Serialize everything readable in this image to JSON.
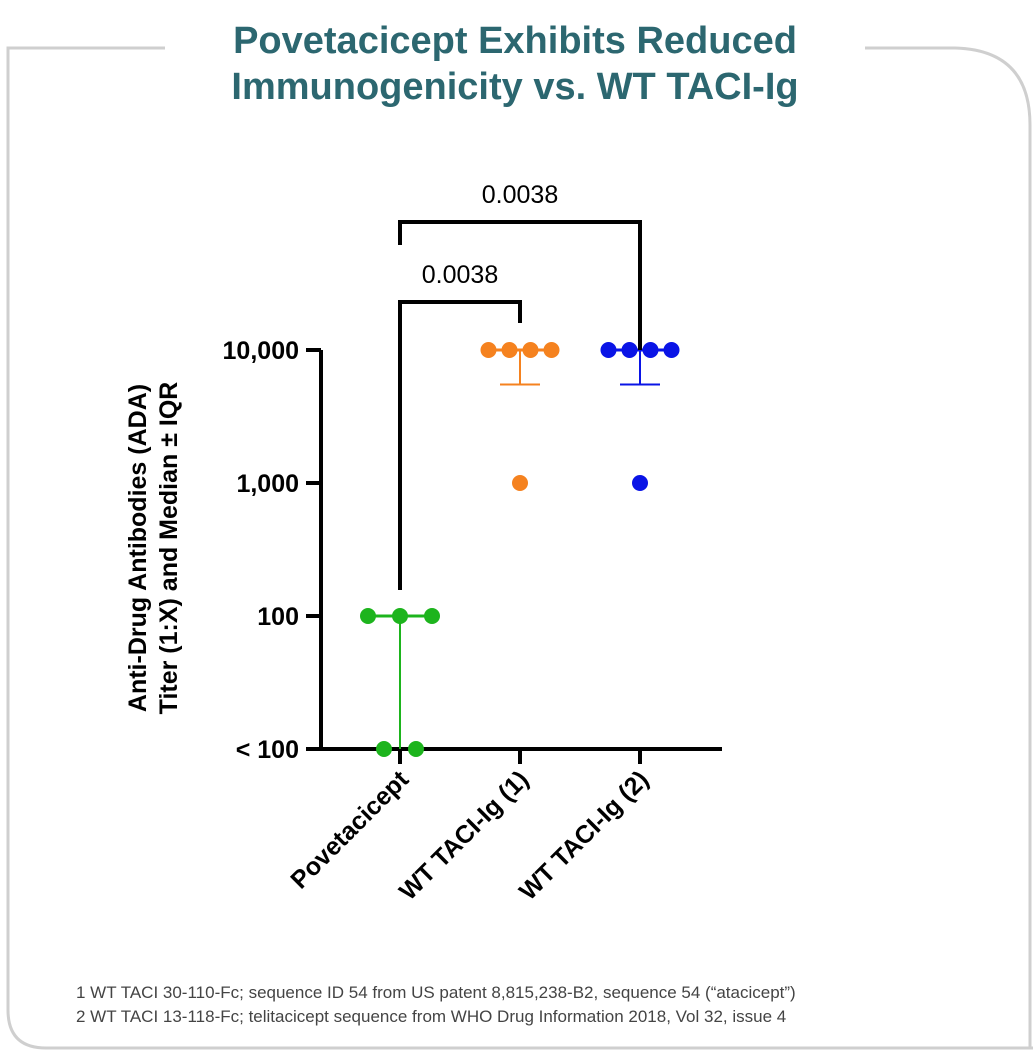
{
  "title": "Povetacicept Exhibits Reduced Immunogenicity vs. WT TACI-Ig",
  "title_lines": [
    "Povetacicept Exhibits Reduced",
    "Immunogenicity vs. WT TACI-Ig"
  ],
  "footnotes": [
    "1 WT TACI 30-110-Fc; sequence ID 54 from US patent 8,815,238-B2, sequence 54 (“atacicept”)",
    "2 WT TACI 13-118-Fc; telitacicept sequence from WHO Drug Information 2018, Vol 32, issue 4"
  ],
  "colors": {
    "title": "#2c6770",
    "frame": "#cfcfcf"
  },
  "chart_data": {
    "type": "scatter",
    "ylabel_lines": [
      "Anti-Drug Antibodies (ADA)",
      "Titer (1:X) and Median ± IQR"
    ],
    "yscale": "log",
    "yticks": [
      {
        "value": "<100",
        "label": "< 100"
      },
      {
        "value": 100,
        "label": "100"
      },
      {
        "value": 1000,
        "label": "1,000"
      },
      {
        "value": 10000,
        "label": "10,000"
      }
    ],
    "categories": [
      "Povetacicept",
      "WT TACI-Ig (1)",
      "WT TACI-Ig (2)"
    ],
    "series": [
      {
        "category": "Povetacicept",
        "color": "#1db41d",
        "points": [
          100,
          100,
          100,
          "<100",
          "<100"
        ],
        "median": 100,
        "iqr": [
          "<100",
          100
        ]
      },
      {
        "category": "WT TACI-Ig (1)",
        "color": "#f5821f",
        "points": [
          10000,
          10000,
          10000,
          10000,
          1000
        ],
        "median": 10000,
        "iqr": [
          5500,
          10000
        ]
      },
      {
        "category": "WT TACI-Ig (2)",
        "color": "#0a14e6",
        "points": [
          10000,
          10000,
          10000,
          10000,
          1000
        ],
        "median": 10000,
        "iqr": [
          5500,
          10000
        ]
      }
    ],
    "comparisons": [
      {
        "from": "Povetacicept",
        "to": "WT TACI-Ig (1)",
        "p": "0.0038"
      },
      {
        "from": "Povetacicept",
        "to": "WT TACI-Ig (2)",
        "p": "0.0038"
      }
    ],
    "grid": false,
    "legend": "none"
  }
}
